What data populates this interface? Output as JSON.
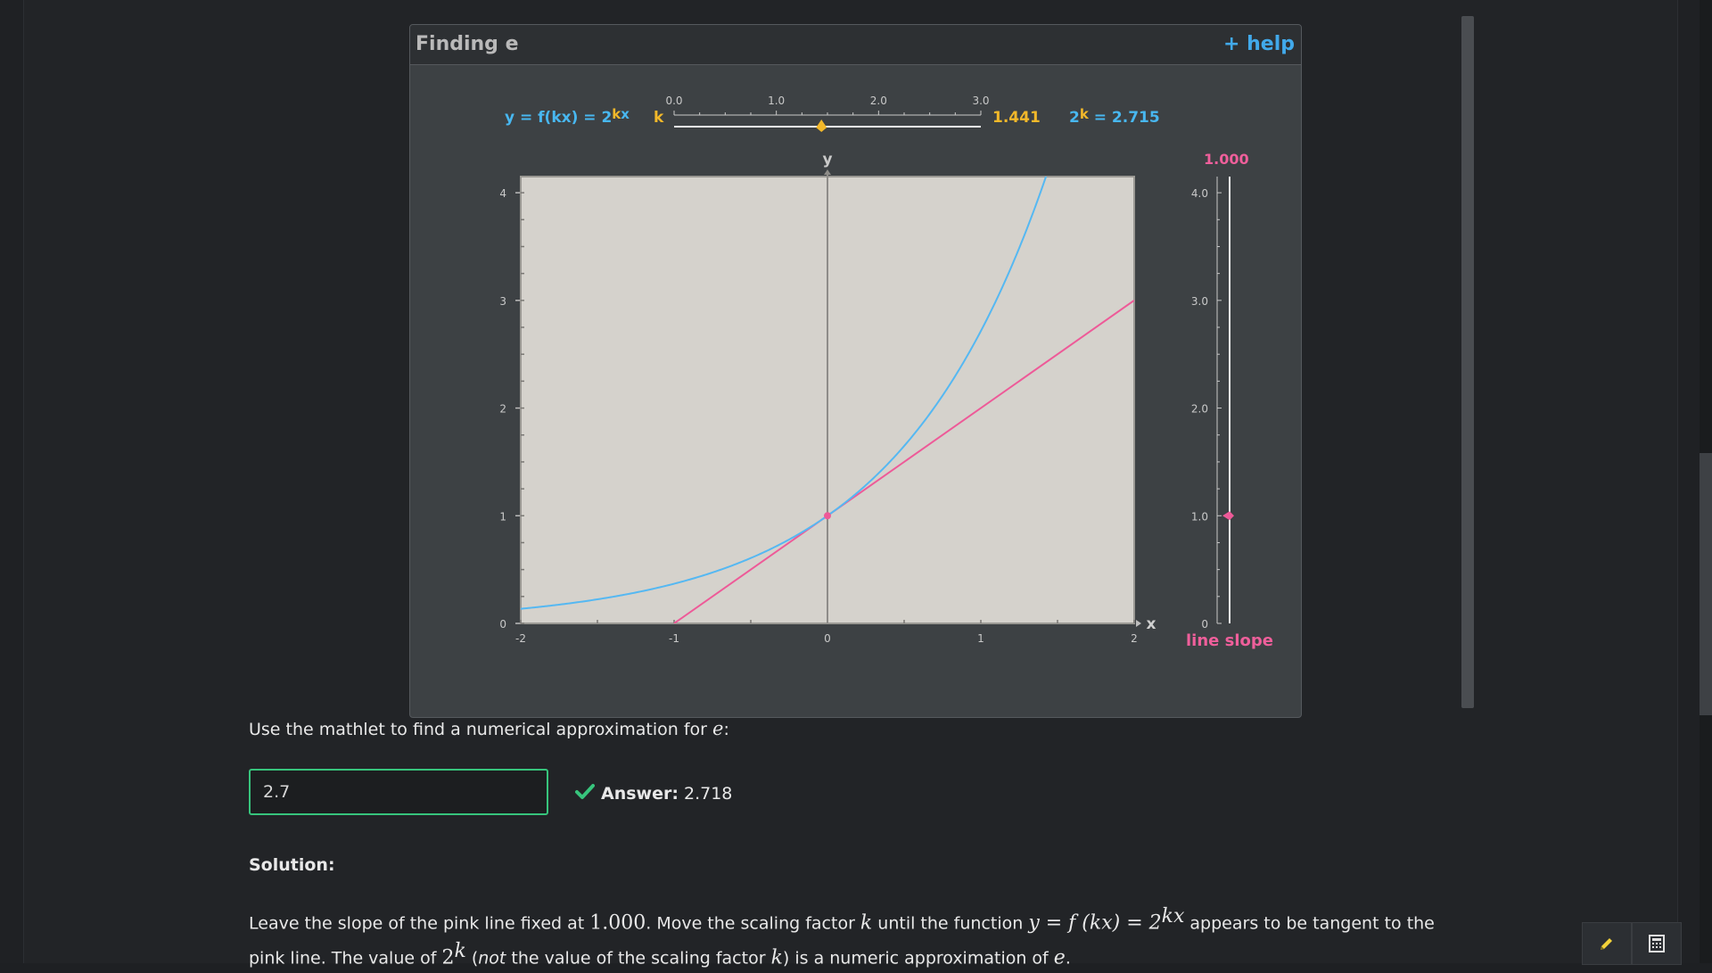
{
  "mathlet": {
    "title": "Finding e",
    "help": "+ help",
    "formula": {
      "lhs": "y = f(kx) = 2",
      "exp_k": "k",
      "exp_x": "x"
    },
    "k_slider": {
      "label": "k",
      "ticks": [
        "0.0",
        "1.0",
        "2.0",
        "3.0"
      ],
      "min": 0,
      "max": 3,
      "value": 1.441,
      "value_text": "1.441"
    },
    "power_readout": {
      "base": "2",
      "exp": "k",
      "value": "= 2.715"
    },
    "slope_slider": {
      "value": 1.0,
      "value_text": "1.000",
      "label": "line slope",
      "ticks": [
        "0",
        "1.0",
        "2.0",
        "3.0",
        "4.0"
      ],
      "min": 0,
      "max": 4
    },
    "colors": {
      "curve": "#55b8f2",
      "line": "#ee5a98",
      "k": "#f2b82a",
      "plot_bg": "#d5d2cc"
    }
  },
  "chart_data": {
    "type": "line",
    "xlabel": "x",
    "ylabel": "y",
    "xlim": [
      -2,
      2
    ],
    "ylim": [
      0,
      4.15
    ],
    "x_ticks": [
      "-2",
      "-1",
      "0",
      "1",
      "2"
    ],
    "y_ticks": [
      "0",
      "1",
      "2",
      "3",
      "4"
    ],
    "series": [
      {
        "function": "2^(k·x)",
        "k": 1.441
      },
      {
        "function": "1 + m·x",
        "slope": 1.0
      }
    ],
    "point": [
      0,
      1
    ]
  },
  "question": {
    "prompt_before": "Use the mathlet to find a numerical approximation for ",
    "prompt_var": "e",
    "prompt_after": ":",
    "input_value": "2.7",
    "answer_label": "Answer:",
    "answer_value": "2.718"
  },
  "solution": {
    "title": "Solution:",
    "p1": "Leave the slope of the pink line fixed at ",
    "p1_num": "1.000",
    "p2": ". Move the scaling factor ",
    "var_k": "k",
    "p3": " until the function ",
    "fn_text": "y = f (kx) = 2",
    "fn_exp": "kx",
    "p4": " appears to be tangent to the pink line. The value of ",
    "pow_base": "2",
    "pow_exp": "k",
    "p5_open": " (",
    "p5_not": "not",
    "p5": " the value of the scaling factor ",
    "p6": ") is a numeric approximation of ",
    "var_e": "e",
    "p7": "."
  },
  "toolbar": {
    "pencil": "pencil-icon",
    "calculator": "calculator-icon"
  }
}
